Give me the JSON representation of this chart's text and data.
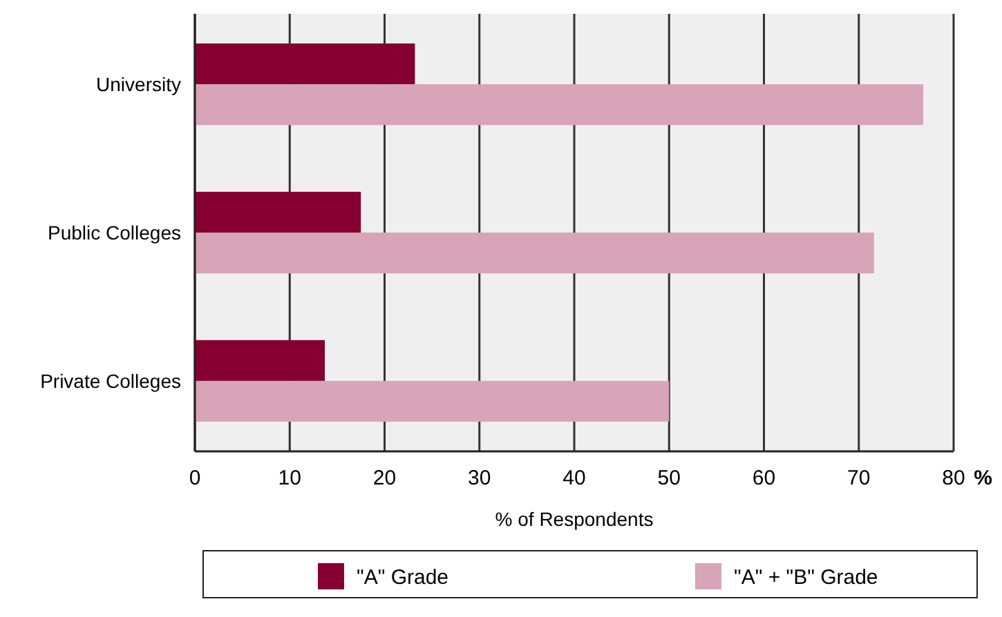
{
  "chart_data": {
    "type": "bar",
    "orientation": "horizontal",
    "categories": [
      "University",
      "Public Colleges",
      "Private Colleges"
    ],
    "series": [
      {
        "name": "\"A\" Grade",
        "color": "#850030",
        "values": [
          23.2,
          17.5,
          13.7
        ]
      },
      {
        "name": "\"A\" + \"B\" Grade",
        "color": "#d7a5b7",
        "values": [
          76.8,
          71.6,
          50
        ]
      }
    ],
    "xlim": [
      0,
      80
    ],
    "xticks": [
      0,
      10,
      20,
      30,
      40,
      50,
      60,
      70,
      80
    ],
    "xlabel": "% of Respondents",
    "annotations": [
      "%"
    ],
    "grid": "x",
    "legend": "bottom"
  }
}
